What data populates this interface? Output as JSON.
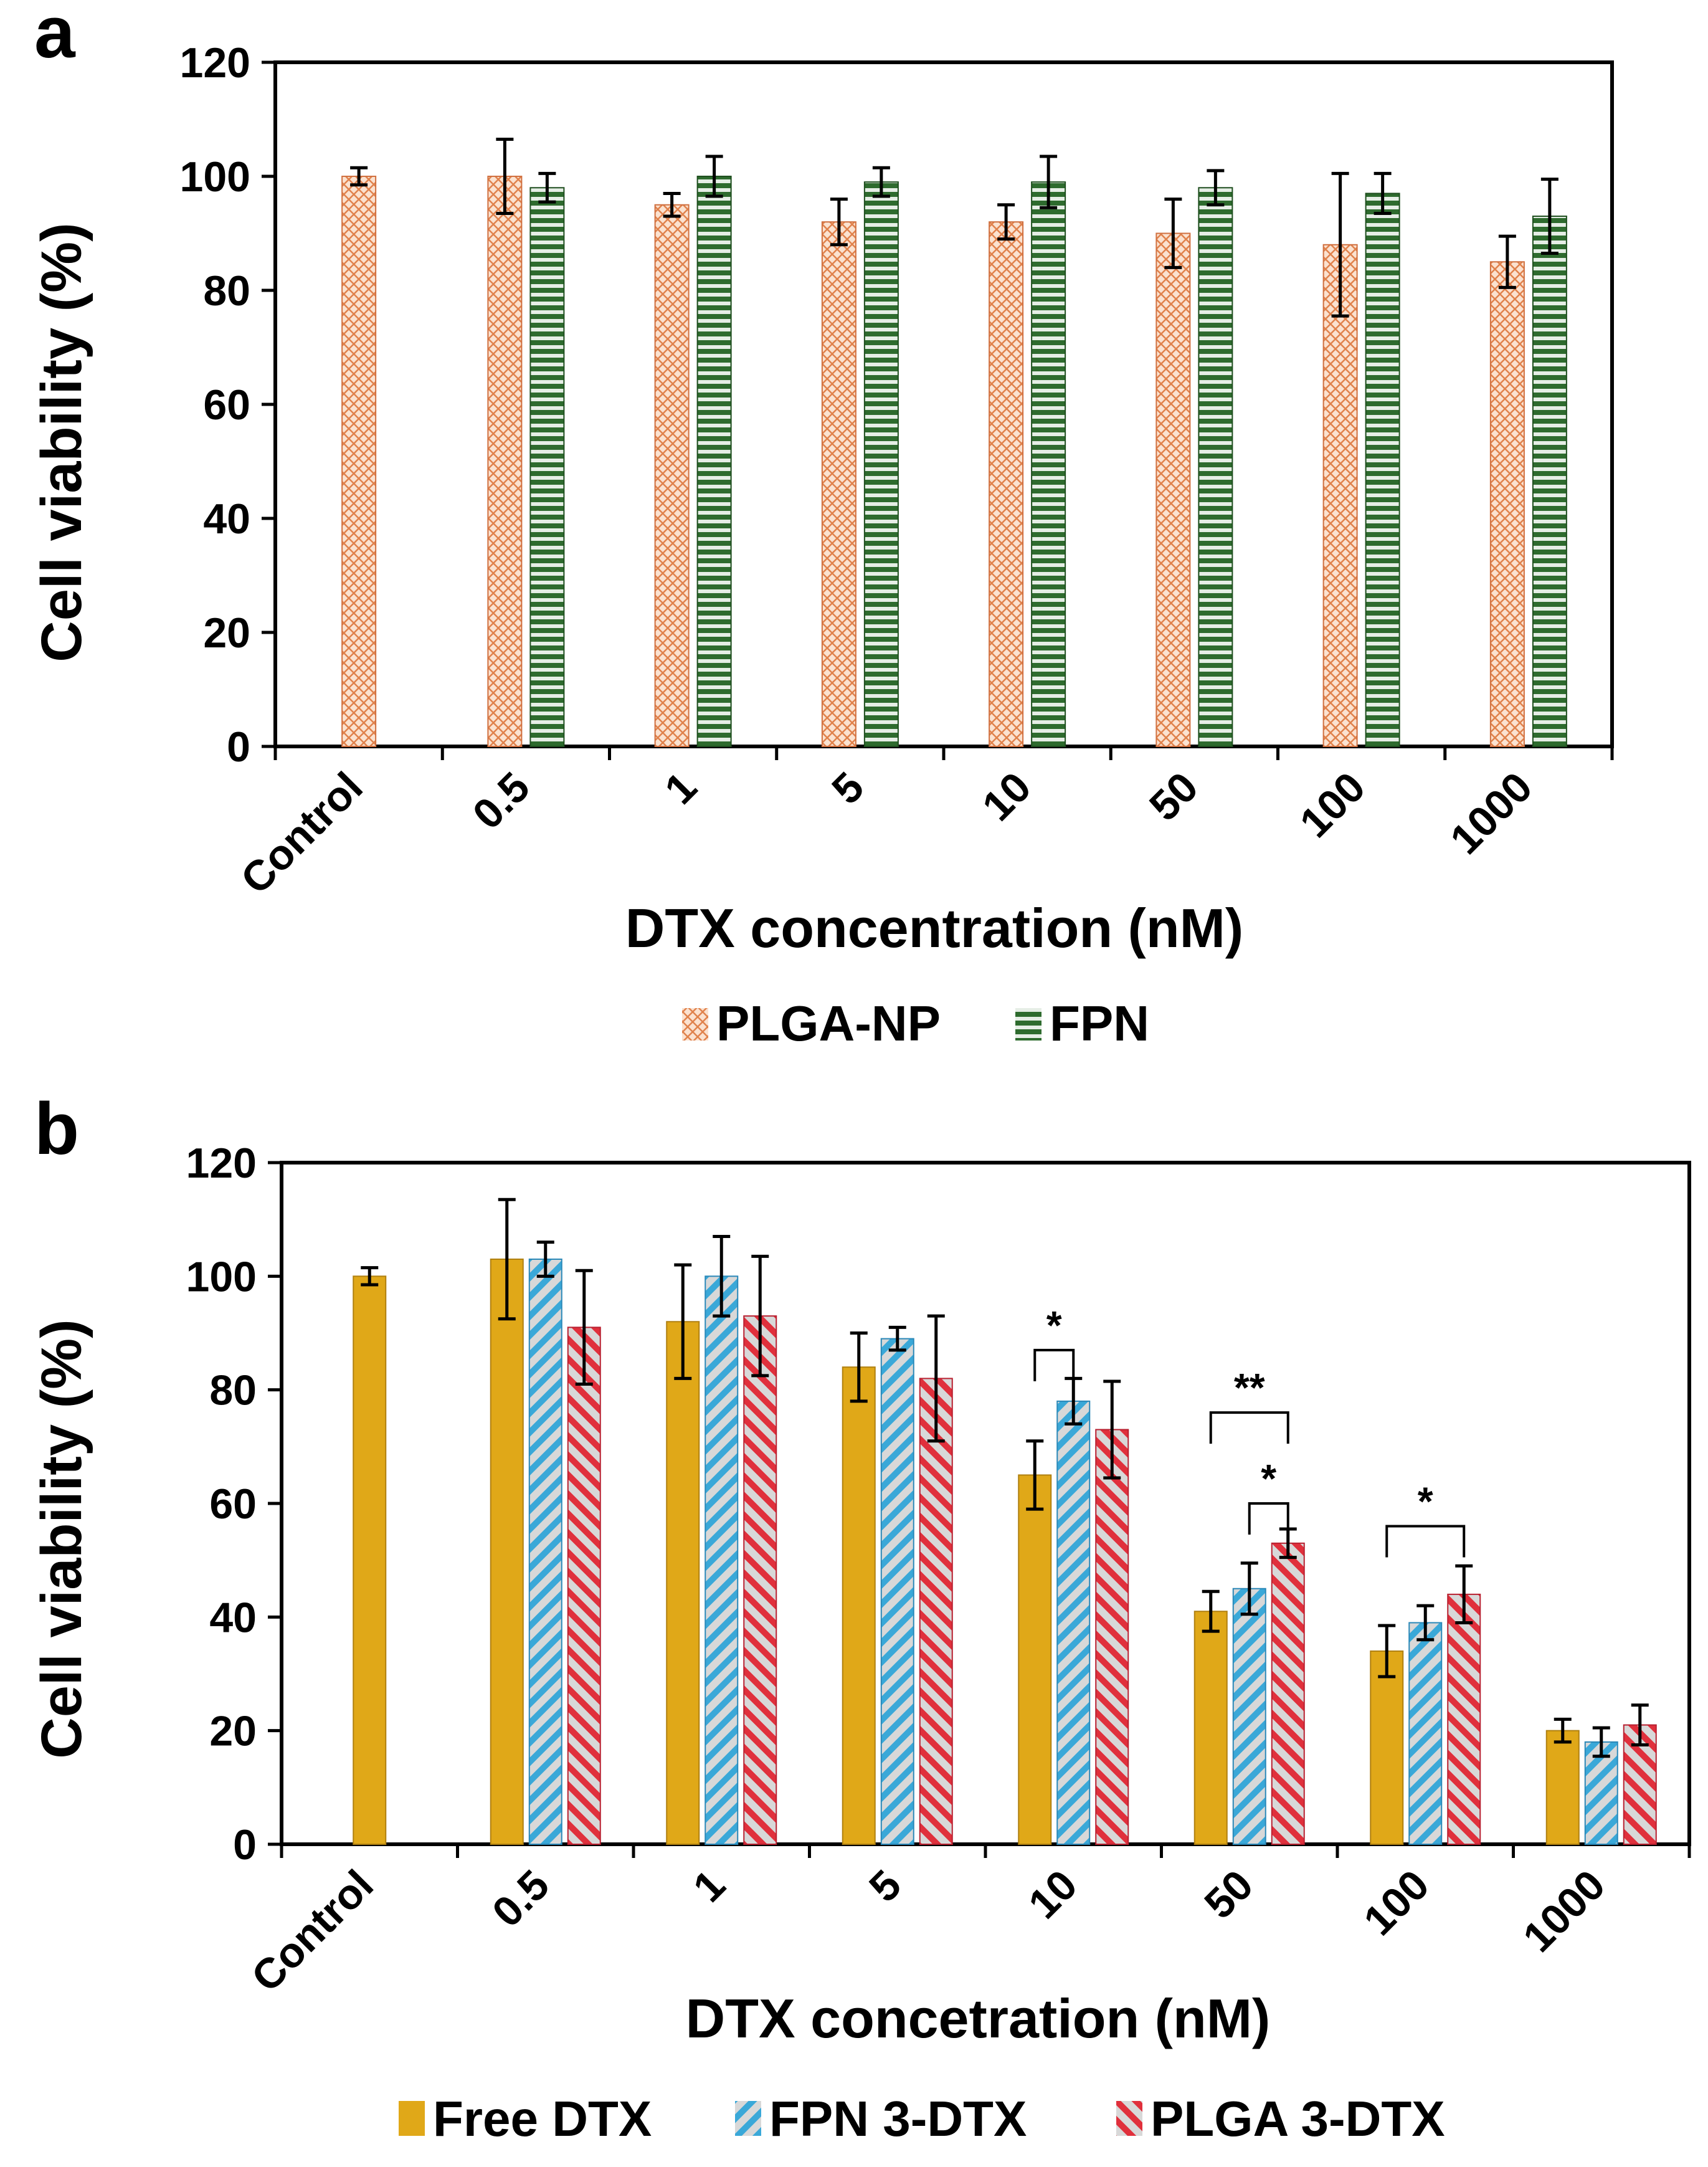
{
  "chart_data": [
    {
      "type": "bar",
      "panel_label": "a",
      "title": "",
      "categories": [
        "Control",
        "0.5",
        "1",
        "5",
        "10",
        "50",
        "100",
        "1000"
      ],
      "series": [
        {
          "name": "PLGA-NP",
          "pattern": "crosshatch",
          "color": "#f0a070",
          "values": [
            100,
            100,
            95,
            92,
            92,
            90,
            88,
            85
          ],
          "errors": [
            1.5,
            6.5,
            2,
            4,
            3,
            6,
            12.5,
            4.5
          ]
        },
        {
          "name": "FPN",
          "pattern": "horizontal-stripes",
          "color": "#2e6b2e",
          "values": [
            null,
            98,
            100,
            99,
            99,
            98,
            97,
            93
          ],
          "errors": [
            null,
            2.5,
            3.5,
            2.5,
            4.5,
            3,
            3.5,
            6.5
          ]
        }
      ],
      "xlabel": "DTX concentration (nM)",
      "ylabel": "Cell viability (%)",
      "ylim": [
        0,
        120
      ],
      "yticks": [
        0,
        20,
        40,
        60,
        80,
        100,
        120
      ],
      "legend": [
        "PLGA-NP",
        "FPN"
      ],
      "legend_position": "bottom-center",
      "annotations": []
    },
    {
      "type": "bar",
      "panel_label": "b",
      "title": "",
      "categories": [
        "Control",
        "0.5",
        "1",
        "5",
        "10",
        "50",
        "100",
        "1000"
      ],
      "series": [
        {
          "name": "Free DTX",
          "pattern": "solid",
          "color": "#e0a818",
          "values": [
            100,
            103,
            92,
            84,
            65,
            41,
            34,
            20
          ],
          "errors": [
            1.5,
            10.5,
            10,
            6,
            6,
            3.5,
            4.5,
            2
          ]
        },
        {
          "name": "FPN 3-DTX",
          "pattern": "diagonal-stripes",
          "color": "#3aa8d8",
          "values": [
            null,
            103,
            100,
            89,
            78,
            45,
            39,
            18
          ],
          "errors": [
            null,
            3,
            7,
            2,
            4,
            4.5,
            3,
            2.5
          ]
        },
        {
          "name": "PLGA 3-DTX",
          "pattern": "diagonal-stripes",
          "color": "#e0303c",
          "values": [
            null,
            91,
            93,
            82,
            73,
            53,
            44,
            21
          ],
          "errors": [
            null,
            10,
            10.5,
            11,
            8.5,
            2.5,
            5,
            3.5
          ]
        }
      ],
      "xlabel": "DTX concetration (nM)",
      "ylabel": "Cell viability (%)",
      "ylim": [
        0,
        120
      ],
      "yticks": [
        0,
        20,
        40,
        60,
        80,
        100,
        120
      ],
      "legend": [
        "Free DTX",
        "FPN 3-DTX",
        "PLGA 3-DTX"
      ],
      "legend_position": "bottom-center",
      "annotations": [
        {
          "text": "*",
          "category": "10",
          "from_series": 0,
          "to_series": 1,
          "level": 87
        },
        {
          "text": "**",
          "category": "50",
          "from_series": 0,
          "to_series": 2,
          "level": 76
        },
        {
          "text": "*",
          "category": "50",
          "from_series": 1,
          "to_series": 2,
          "level": 60
        },
        {
          "text": "*",
          "category": "100",
          "from_series": 0,
          "to_series": 2,
          "level": 56
        }
      ]
    }
  ]
}
